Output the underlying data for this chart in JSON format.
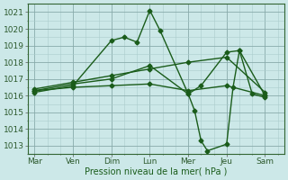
{
  "xlabel": "Pression niveau de la mer( hPa )",
  "bg_color": "#cce8e8",
  "grid_major_color": "#88aaaa",
  "grid_minor_color": "#aacccc",
  "line_color": "#1a5c1a",
  "ylim": [
    1012.5,
    1021.5
  ],
  "yticks": [
    1013,
    1014,
    1015,
    1016,
    1017,
    1018,
    1019,
    1020,
    1021
  ],
  "x_labels": [
    "Mar",
    "Ven",
    "Dim",
    "Lun",
    "Mer",
    "Jeu",
    "Sam"
  ],
  "x_positions": [
    0,
    3,
    6,
    9,
    12,
    15,
    18
  ],
  "xlim": [
    -0.5,
    19.5
  ],
  "lines": [
    {
      "x": [
        0,
        3,
        6,
        7,
        8,
        9,
        9.8,
        12,
        12.5,
        13,
        13.5,
        15,
        15.5,
        16,
        18
      ],
      "y": [
        1016.2,
        1016.6,
        1019.3,
        1019.5,
        1019.2,
        1021.1,
        1019.9,
        1016.1,
        1015.1,
        1013.3,
        1012.7,
        1013.1,
        1016.5,
        1018.7,
        1016.0
      ],
      "marker": "D",
      "ms": 2.5,
      "lw": 1.0
    },
    {
      "x": [
        0,
        3,
        6,
        9,
        12,
        13,
        15,
        16,
        17,
        18
      ],
      "y": [
        1016.3,
        1016.7,
        1017.0,
        1017.8,
        1016.1,
        1016.6,
        1018.6,
        1018.7,
        1016.1,
        1015.9
      ],
      "marker": "D",
      "ms": 2.5,
      "lw": 1.0
    },
    {
      "x": [
        0,
        3,
        6,
        9,
        12,
        15,
        18
      ],
      "y": [
        1016.4,
        1016.8,
        1017.2,
        1017.6,
        1018.0,
        1018.3,
        1016.2
      ],
      "marker": "D",
      "ms": 2.5,
      "lw": 1.0
    },
    {
      "x": [
        0,
        3,
        6,
        9,
        12,
        15,
        18
      ],
      "y": [
        1016.3,
        1016.5,
        1016.6,
        1016.7,
        1016.3,
        1016.6,
        1016.0
      ],
      "marker": "D",
      "ms": 2.5,
      "lw": 1.0
    }
  ]
}
